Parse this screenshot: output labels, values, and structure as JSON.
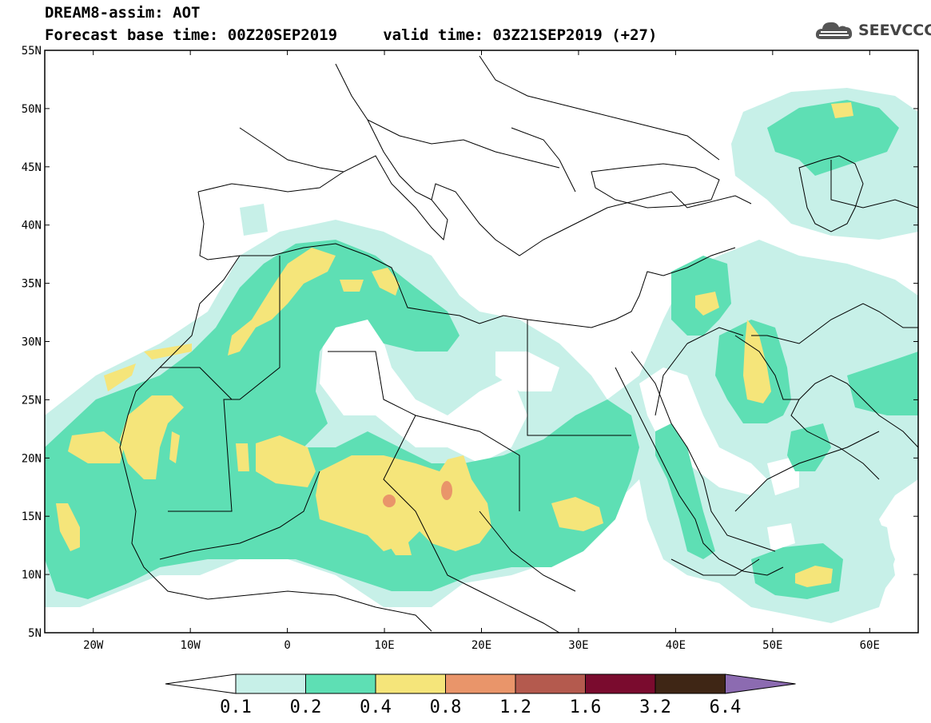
{
  "header": {
    "title_line1": "DREAM8-assim: AOT",
    "title_line2": "Forecast base time: 00Z20SEP2019     valid time: 03Z21SEP2019 (+27)",
    "logo_text": "SEEVCCC",
    "logo_icon": "cloud-icon"
  },
  "map": {
    "projection": "lat-lon",
    "lon_range": [
      -25,
      65
    ],
    "lat_range": [
      5,
      55
    ],
    "lat_ticks": [
      {
        "value": 55,
        "label": "55N"
      },
      {
        "value": 50,
        "label": "50N"
      },
      {
        "value": 45,
        "label": "45N"
      },
      {
        "value": 40,
        "label": "40N"
      },
      {
        "value": 35,
        "label": "35N"
      },
      {
        "value": 30,
        "label": "30N"
      },
      {
        "value": 25,
        "label": "25N"
      },
      {
        "value": 20,
        "label": "20N"
      },
      {
        "value": 15,
        "label": "15N"
      },
      {
        "value": 10,
        "label": "10N"
      },
      {
        "value": 5,
        "label": "5N"
      }
    ],
    "lon_ticks": [
      {
        "value": -20,
        "label": "20W"
      },
      {
        "value": -10,
        "label": "10W"
      },
      {
        "value": 0,
        "label": "0"
      },
      {
        "value": 10,
        "label": "10E"
      },
      {
        "value": 20,
        "label": "20E"
      },
      {
        "value": 30,
        "label": "30E"
      },
      {
        "value": 40,
        "label": "40E"
      },
      {
        "value": 50,
        "label": "50E"
      },
      {
        "value": 60,
        "label": "60E"
      }
    ]
  },
  "colorbar": {
    "left_arrow_color": "#ffffff",
    "right_arrow_color": "#8c6bb1",
    "bins": [
      "#c7f0e8",
      "#5edfb4",
      "#f5e57a",
      "#e9956a",
      "#b45a4e",
      "#7a0b2e",
      "#3f2615"
    ],
    "labels": [
      "0.1",
      "0.2",
      "0.4",
      "0.8",
      "1.2",
      "1.6",
      "3.2",
      "6.4"
    ]
  },
  "colors": {
    "aot_0_1": "#c7f0e8",
    "aot_0_2": "#5edfb4",
    "aot_0_4": "#f5e57a",
    "aot_0_8": "#e9956a",
    "border": "#000000"
  }
}
